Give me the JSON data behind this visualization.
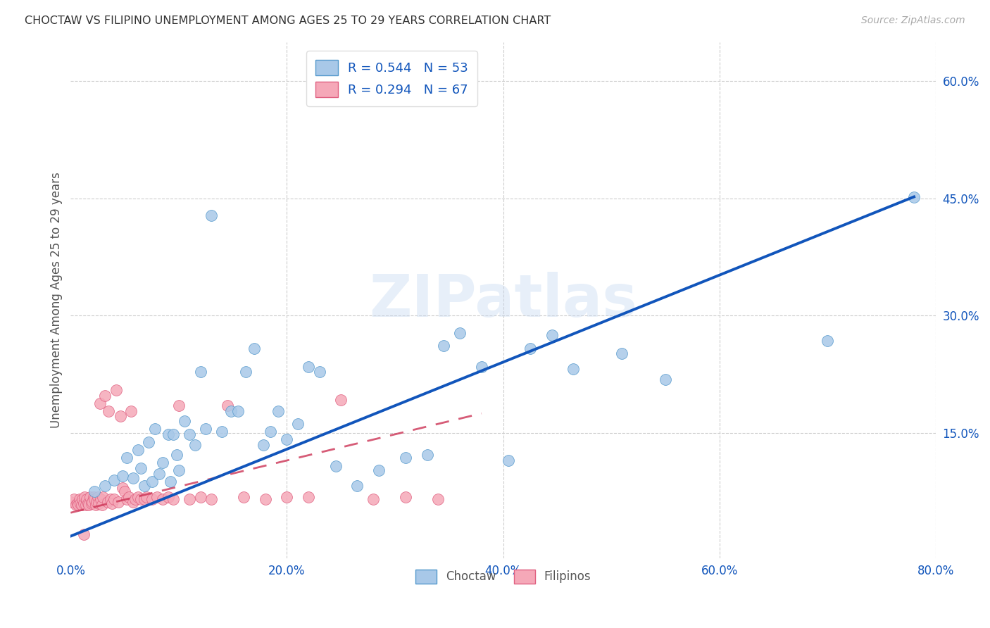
{
  "title": "CHOCTAW VS FILIPINO UNEMPLOYMENT AMONG AGES 25 TO 29 YEARS CORRELATION CHART",
  "source": "Source: ZipAtlas.com",
  "ylabel": "Unemployment Among Ages 25 to 29 years",
  "xlim": [
    0.0,
    0.8
  ],
  "ylim": [
    -0.01,
    0.65
  ],
  "xticks": [
    0.0,
    0.2,
    0.4,
    0.6,
    0.8
  ],
  "xticklabels": [
    "0.0%",
    "20.0%",
    "40.0%",
    "60.0%",
    "80.0%"
  ],
  "ytick_positions": [
    0.15,
    0.3,
    0.45,
    0.6
  ],
  "yticklabels": [
    "15.0%",
    "30.0%",
    "45.0%",
    "60.0%"
  ],
  "grid_color": "#cccccc",
  "background_color": "#ffffff",
  "choctaw_fill": "#a8c8e8",
  "choctaw_edge": "#5599cc",
  "filipino_fill": "#f5a8b8",
  "filipino_edge": "#e06080",
  "choctaw_line_color": "#1155bb",
  "filipino_line_color": "#cc3355",
  "legend_choctaw_label": "R = 0.544   N = 53",
  "legend_filipino_label": "R = 0.294   N = 67",
  "choctaw_line_x0": 0.0,
  "choctaw_line_y0": 0.018,
  "choctaw_line_x1": 0.78,
  "choctaw_line_y1": 0.452,
  "filipino_line_x0": 0.0,
  "filipino_line_y0": 0.048,
  "filipino_line_x1": 0.38,
  "filipino_line_y1": 0.175,
  "choctaw_x": [
    0.022,
    0.032,
    0.04,
    0.048,
    0.052,
    0.058,
    0.062,
    0.065,
    0.068,
    0.072,
    0.075,
    0.078,
    0.082,
    0.085,
    0.09,
    0.092,
    0.095,
    0.098,
    0.1,
    0.105,
    0.11,
    0.115,
    0.12,
    0.125,
    0.13,
    0.14,
    0.148,
    0.155,
    0.162,
    0.17,
    0.178,
    0.185,
    0.192,
    0.2,
    0.21,
    0.22,
    0.23,
    0.245,
    0.265,
    0.285,
    0.31,
    0.33,
    0.345,
    0.36,
    0.38,
    0.405,
    0.425,
    0.445,
    0.465,
    0.51,
    0.55,
    0.7,
    0.78
  ],
  "choctaw_y": [
    0.075,
    0.082,
    0.09,
    0.095,
    0.118,
    0.092,
    0.128,
    0.105,
    0.082,
    0.138,
    0.088,
    0.155,
    0.098,
    0.112,
    0.148,
    0.088,
    0.148,
    0.122,
    0.102,
    0.165,
    0.148,
    0.135,
    0.228,
    0.155,
    0.428,
    0.152,
    0.178,
    0.178,
    0.228,
    0.258,
    0.135,
    0.152,
    0.178,
    0.142,
    0.162,
    0.235,
    0.228,
    0.108,
    0.082,
    0.102,
    0.118,
    0.122,
    0.262,
    0.278,
    0.235,
    0.115,
    0.258,
    0.275,
    0.232,
    0.252,
    0.218,
    0.268,
    0.452
  ],
  "filipino_x": [
    0.0,
    0.003,
    0.005,
    0.006,
    0.007,
    0.008,
    0.009,
    0.01,
    0.011,
    0.012,
    0.013,
    0.014,
    0.015,
    0.016,
    0.017,
    0.018,
    0.019,
    0.02,
    0.021,
    0.022,
    0.023,
    0.024,
    0.025,
    0.026,
    0.027,
    0.028,
    0.029,
    0.03,
    0.032,
    0.034,
    0.035,
    0.037,
    0.038,
    0.04,
    0.042,
    0.044,
    0.046,
    0.048,
    0.05,
    0.052,
    0.054,
    0.056,
    0.058,
    0.06,
    0.062,
    0.065,
    0.068,
    0.07,
    0.075,
    0.08,
    0.085,
    0.09,
    0.095,
    0.1,
    0.11,
    0.12,
    0.13,
    0.145,
    0.16,
    0.18,
    0.2,
    0.22,
    0.25,
    0.28,
    0.31,
    0.34,
    0.012
  ],
  "filipino_y": [
    0.062,
    0.065,
    0.058,
    0.06,
    0.058,
    0.065,
    0.06,
    0.058,
    0.065,
    0.06,
    0.068,
    0.058,
    0.065,
    0.06,
    0.058,
    0.068,
    0.06,
    0.062,
    0.068,
    0.065,
    0.058,
    0.062,
    0.068,
    0.06,
    0.188,
    0.065,
    0.058,
    0.068,
    0.198,
    0.062,
    0.178,
    0.065,
    0.06,
    0.065,
    0.205,
    0.062,
    0.172,
    0.08,
    0.075,
    0.065,
    0.068,
    0.178,
    0.062,
    0.065,
    0.068,
    0.065,
    0.065,
    0.068,
    0.065,
    0.068,
    0.065,
    0.068,
    0.065,
    0.185,
    0.065,
    0.068,
    0.065,
    0.185,
    0.068,
    0.065,
    0.068,
    0.068,
    0.192,
    0.065,
    0.068,
    0.065,
    0.02
  ]
}
